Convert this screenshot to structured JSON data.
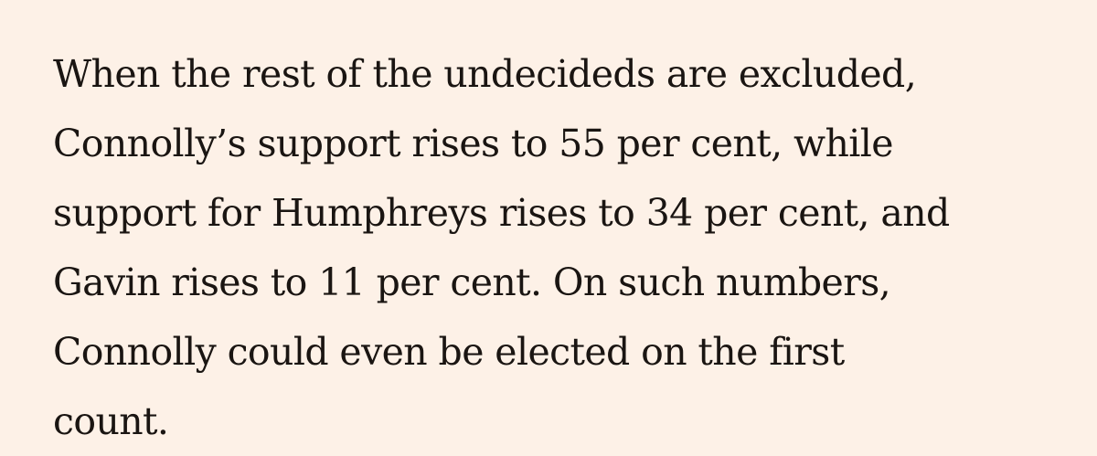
{
  "article": {
    "lines": [
      "When the rest of the undecideds are excluded,",
      "Connolly’s support rises to 55 per cent, while",
      "support for Humphreys rises to 34 per cent, and",
      "Gavin rises to 11 per cent. On such numbers,",
      "Connolly could even be elected on the first",
      "count."
    ]
  }
}
